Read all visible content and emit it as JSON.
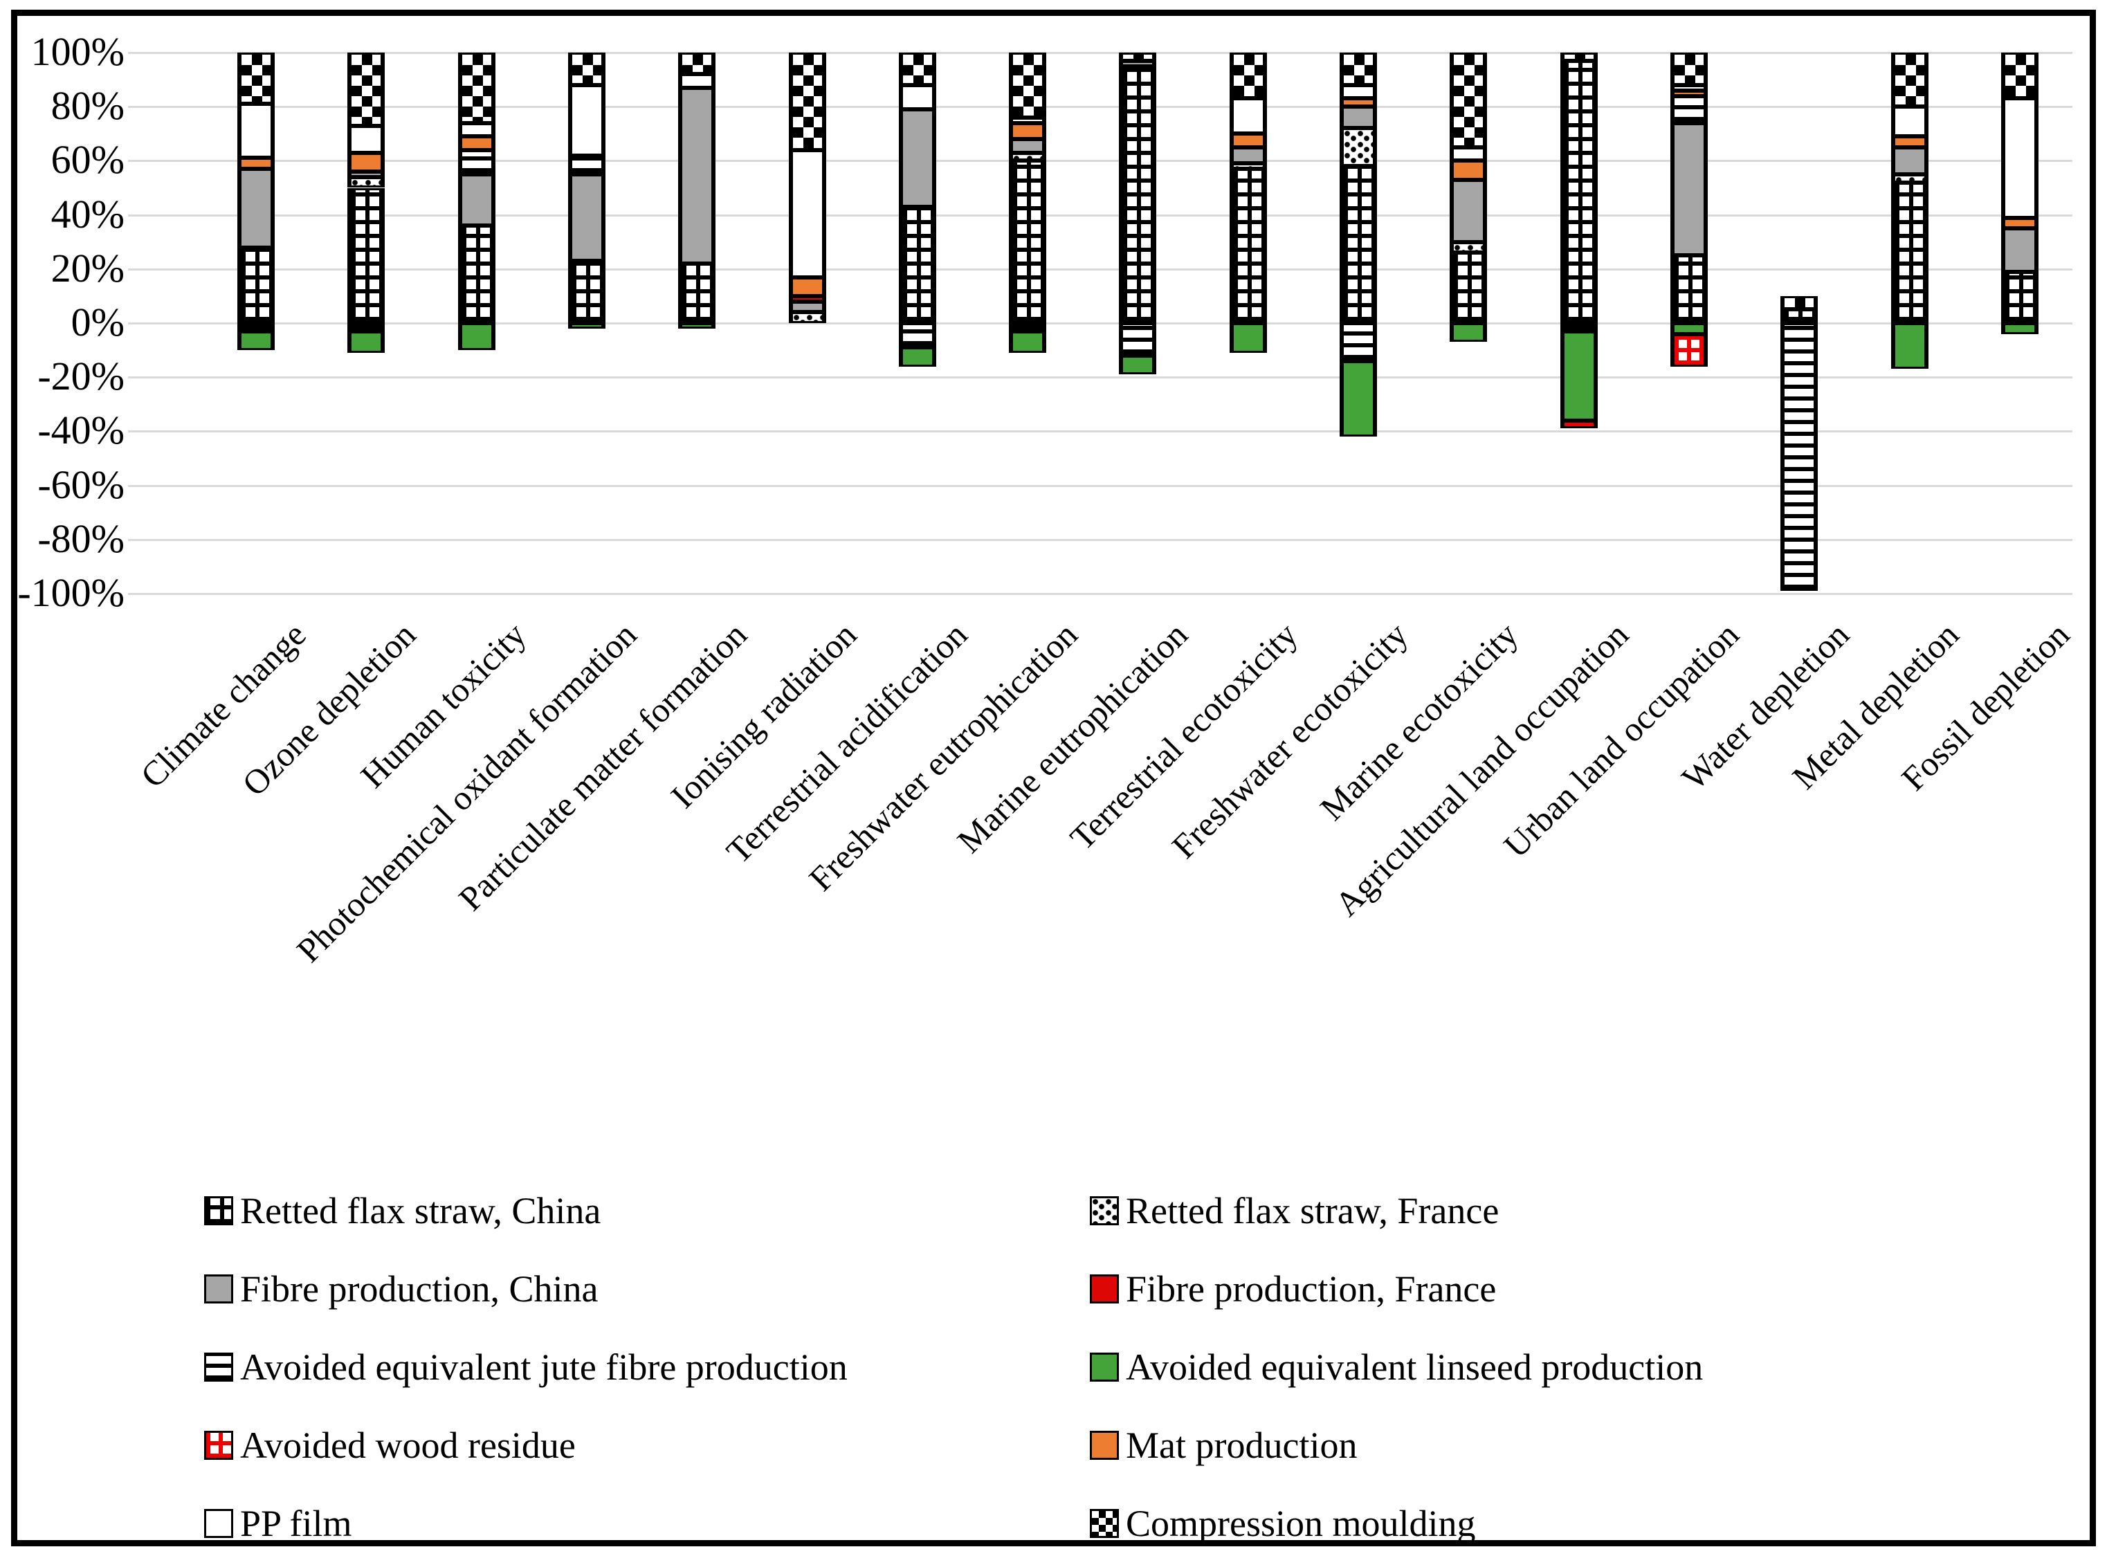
{
  "chart_data": {
    "type": "bar",
    "stacked": true,
    "normalized_percent": true,
    "grid": true,
    "gridline_color": "#D9D9D9",
    "legend_position": "bottom",
    "ylim": [
      -100,
      100
    ],
    "yticks": [
      "100%",
      "80%",
      "60%",
      "40%",
      "20%",
      "0%",
      "-20%",
      "-40%",
      "-60%",
      "-80%",
      "-100%"
    ],
    "ytick_values": [
      100,
      80,
      60,
      40,
      20,
      0,
      -20,
      -40,
      -60,
      -80,
      -100
    ],
    "xlabel": "",
    "ylabel": "",
    "title": "",
    "categories": [
      "Climate change",
      "Ozone depletion",
      "Human toxicity",
      "Photochemical oxidant formation",
      "Particulate matter formation",
      "Ionising radiation",
      "Terrestrial acidification",
      "Freshwater eutrophication",
      "Marine eutrophication",
      "Terrestrial ecotoxicity",
      "Freshwater ecotoxicity",
      "Marine ecotoxicity",
      "Agricultural land occupation",
      "Urban land occupation",
      "Water depletion",
      "Metal depletion",
      "Fossil depletion"
    ],
    "series": [
      {
        "name": "Retted flax straw, China",
        "pattern": "grid-black",
        "color": "#000000",
        "values": [
          28,
          50,
          36,
          23,
          22,
          0,
          43,
          60,
          95,
          57,
          58,
          26,
          97,
          25,
          5,
          52,
          19
        ]
      },
      {
        "name": "Retted flax straw, France",
        "pattern": "speckle",
        "color": "#000000",
        "values": [
          0,
          4,
          0,
          0,
          0,
          4,
          0,
          3,
          0,
          2,
          14,
          4,
          0,
          0,
          0,
          3,
          0
        ]
      },
      {
        "name": "Fibre production, China",
        "pattern": "solid-gray",
        "color": "#A6A6A6",
        "values": [
          29,
          2,
          19,
          32,
          65,
          4,
          36,
          5,
          2,
          6,
          8,
          23,
          0,
          49,
          0,
          10,
          16
        ]
      },
      {
        "name": "Fibre production, France",
        "pattern": "solid-red",
        "color": "#DD0806",
        "values": [
          0,
          0,
          0,
          0,
          0,
          2,
          0,
          0,
          0,
          0,
          0,
          0,
          0,
          0,
          0,
          0,
          0
        ]
      },
      {
        "name": "Avoided equivalent jute fibre production",
        "pattern": "hlines",
        "color": "#000000",
        "values": [
          -3,
          -3,
          9,
          7,
          0,
          0,
          -9,
          -3,
          -12,
          0,
          -14,
          0,
          -3,
          10,
          -99,
          0,
          0
        ]
      },
      {
        "name": "Avoided equivalent linseed production",
        "pattern": "solid-green",
        "color": "#45A439",
        "values": [
          -7,
          -8,
          -10,
          -2,
          -2,
          0,
          -7,
          -8,
          -7,
          -11,
          -28,
          -7,
          -33,
          -4,
          0,
          -17,
          -4
        ]
      },
      {
        "name": "Avoided wood residue",
        "pattern": "grid-red",
        "color": "#F00000",
        "values": [
          0,
          0,
          0,
          0,
          0,
          0,
          0,
          0,
          0,
          0,
          0,
          0,
          -3,
          -12,
          0,
          0,
          0
        ]
      },
      {
        "name": "Mat production",
        "pattern": "solid-orange",
        "color": "#ED7D31",
        "values": [
          4,
          7,
          5,
          0,
          0,
          7,
          0,
          6,
          0,
          5,
          3,
          7,
          0,
          2,
          0,
          4,
          4
        ]
      },
      {
        "name": "PP film",
        "pattern": "solid-white",
        "color": "#FFFFFF",
        "values": [
          20,
          10,
          5,
          26,
          5,
          47,
          9,
          2,
          0,
          13,
          5,
          5,
          0,
          2,
          0,
          11,
          44
        ]
      },
      {
        "name": "Compression moulding",
        "pattern": "checker",
        "color": "#000000",
        "values": [
          19,
          27,
          26,
          12,
          8,
          36,
          12,
          24,
          3,
          17,
          12,
          35,
          3,
          12,
          5,
          20,
          17
        ]
      }
    ],
    "positive_stack_order": [
      0,
      1,
      2,
      3,
      4,
      7,
      8,
      9
    ],
    "negative_stack_order": [
      4,
      5,
      6
    ]
  },
  "legend": {
    "items": [
      {
        "label": "Retted flax straw, China",
        "pattern": "grid-black"
      },
      {
        "label": "Retted flax straw, France",
        "pattern": "speckle"
      },
      {
        "label": "Fibre production, China",
        "pattern": "solid-gray"
      },
      {
        "label": "Fibre production, France",
        "pattern": "solid-red"
      },
      {
        "label": "Avoided equivalent jute fibre production",
        "pattern": "hlines"
      },
      {
        "label": "Avoided equivalent linseed production",
        "pattern": "solid-green"
      },
      {
        "label": "Avoided wood residue",
        "pattern": "grid-red"
      },
      {
        "label": "Mat production",
        "pattern": "solid-orange"
      },
      {
        "label": "PP film",
        "pattern": "solid-white"
      },
      {
        "label": "Compression moulding",
        "pattern": "checker"
      }
    ]
  }
}
